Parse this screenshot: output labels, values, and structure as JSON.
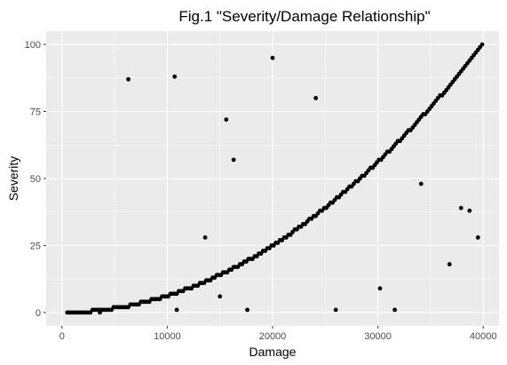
{
  "chart_data": {
    "type": "scatter",
    "title": "Fig.1 \"Severity/Damage Relationship\"",
    "subtitle": "",
    "xlabel": "Damage",
    "ylabel": "Severity",
    "xlim": [
      -1500,
      41500
    ],
    "ylim": [
      -5,
      105
    ],
    "xticks": [
      0,
      10000,
      20000,
      30000,
      40000
    ],
    "yticks": [
      0,
      25,
      50,
      75,
      100
    ],
    "grid": true,
    "legend": "none",
    "panel_background": "#ebebeb",
    "grid_color": "#ffffff",
    "point_color": "#000000",
    "curve": {
      "description_hidden": true,
      "x_start": 500,
      "x_end": 40000,
      "step": 200,
      "y_at_x_end": 100,
      "exponent": 2
    },
    "scattered_points": [
      {
        "x": 6300,
        "y": 87
      },
      {
        "x": 10700,
        "y": 88
      },
      {
        "x": 20000,
        "y": 95
      },
      {
        "x": 24100,
        "y": 80
      },
      {
        "x": 15600,
        "y": 72
      },
      {
        "x": 16300,
        "y": 57
      },
      {
        "x": 13600,
        "y": 28
      },
      {
        "x": 15000,
        "y": 6
      },
      {
        "x": 10900,
        "y": 1
      },
      {
        "x": 17600,
        "y": 1
      },
      {
        "x": 3600,
        "y": 0
      },
      {
        "x": 26000,
        "y": 1
      },
      {
        "x": 30200,
        "y": 9
      },
      {
        "x": 31600,
        "y": 1
      },
      {
        "x": 34100,
        "y": 48
      },
      {
        "x": 36800,
        "y": 18
      },
      {
        "x": 37900,
        "y": 39
      },
      {
        "x": 38700,
        "y": 38
      },
      {
        "x": 39500,
        "y": 28
      }
    ]
  }
}
